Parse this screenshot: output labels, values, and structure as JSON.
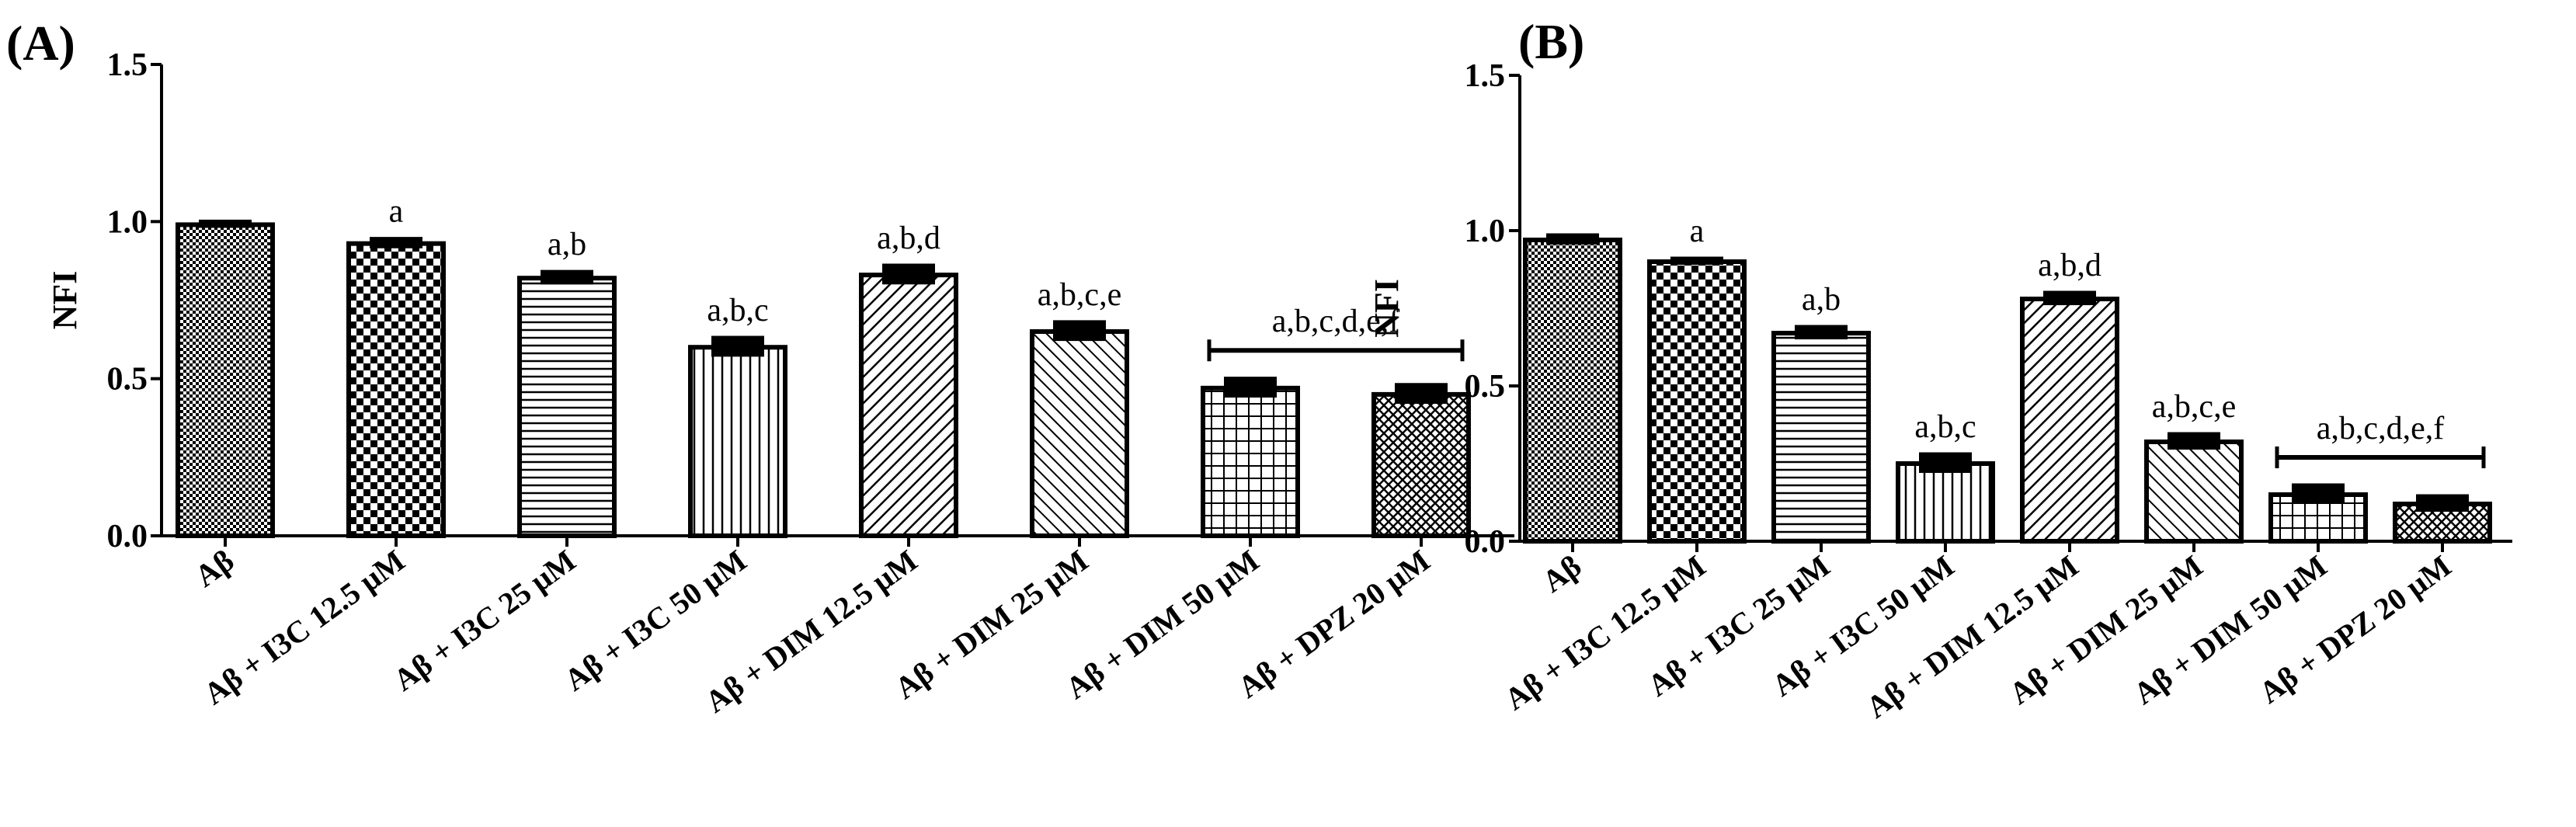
{
  "chart_data": [
    {
      "type": "bar",
      "panel_label": "(A)",
      "ylabel": "NFI",
      "ylim": [
        0,
        1.5
      ],
      "yticks": [
        "0.0",
        "0.5",
        "1.0",
        "1.5"
      ],
      "categories": [
        "Aβ",
        "Aβ + I3C 12.5 μM",
        "Aβ + I3C 25 μM",
        "Aβ + I3C 50 μM",
        "Aβ + DIM 12.5 μM",
        "Aβ + DIM 25 μM",
        "Aβ + DIM 50 μM",
        "Aβ + DPZ 20 μM"
      ],
      "values": [
        0.99,
        0.93,
        0.82,
        0.6,
        0.83,
        0.65,
        0.47,
        0.45
      ],
      "errors": [
        0.01,
        0.015,
        0.02,
        0.03,
        0.03,
        0.03,
        0.03,
        0.03
      ],
      "significance": [
        "",
        "a",
        "a,b",
        "a,b,c",
        "a,b,d",
        "a,b,c,e"
      ],
      "group_significance": {
        "label": "a,b,c,d,e,f",
        "from": 6,
        "to": 7,
        "y": 0.59
      }
    },
    {
      "type": "bar",
      "panel_label": "(B)",
      "ylabel": "NFI",
      "ylim": [
        0,
        1.5
      ],
      "yticks": [
        "0.0",
        "0.5",
        "1.0",
        "1.5"
      ],
      "categories": [
        "Aβ",
        "Aβ + I3C 12.5 μM",
        "Aβ + I3C 25 μM",
        "Aβ + I3C 50 μM",
        "Aβ + DIM 12.5 μM",
        "Aβ + DIM 25 μM",
        "Aβ + DIM 50 μM",
        "Aβ + DPZ 20 μM"
      ],
      "values": [
        0.97,
        0.9,
        0.67,
        0.25,
        0.78,
        0.32,
        0.15,
        0.12
      ],
      "errors": [
        0.015,
        0.01,
        0.02,
        0.03,
        0.02,
        0.025,
        0.03,
        0.025
      ],
      "significance": [
        "",
        "a",
        "a,b",
        "a,b,c",
        "a,b,d",
        "a,b,c,e"
      ],
      "group_significance": {
        "label": "a,b,c,d,e,f",
        "from": 6,
        "to": 7,
        "y": 0.27
      }
    }
  ]
}
